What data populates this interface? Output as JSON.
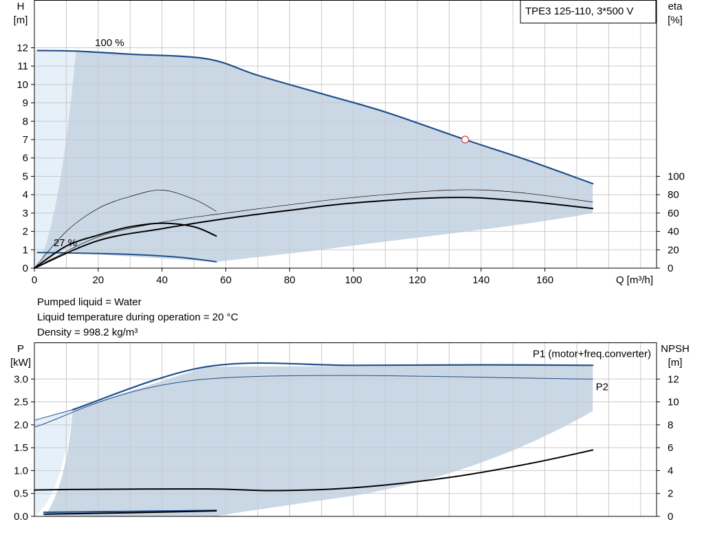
{
  "model_box": "TPE3 125-110, 3*500 V",
  "info": {
    "liquid": "Pumped liquid = Water",
    "temperature": "Liquid temperature during operation = 20 °C",
    "density": "Density = 998.2 kg/m³"
  },
  "colors": {
    "blue": "#1f4e8c",
    "band": "#cad8e6",
    "band_light": "#e6f0f8",
    "grid": "#c9c9c9",
    "black": "#000000"
  },
  "chart_data": [
    {
      "type": "line",
      "ylabel_unit": "H\n[m]",
      "y2label_unit": "eta\n[%]",
      "xlabel": "Q [m³/h]",
      "xlim": [
        0,
        195
      ],
      "ylim": [
        0,
        14.6
      ],
      "y2lim": [
        0,
        292
      ],
      "xticks": [
        0,
        20,
        40,
        60,
        80,
        100,
        120,
        140,
        160
      ],
      "yticks": [
        0,
        1,
        2,
        3,
        4,
        5,
        6,
        7,
        8,
        9,
        10,
        11,
        12
      ],
      "y2ticks": [
        0,
        20,
        40,
        60,
        80,
        100
      ],
      "grid": true,
      "annotations": [
        {
          "text": "100 %",
          "x": 19,
          "y": 12.1
        },
        {
          "text": "27 %",
          "x": 6,
          "y": 1.2
        }
      ],
      "series": [
        {
          "id": "H100",
          "axis": "y",
          "color": "#1f4e8c",
          "width": 2.2,
          "x": [
            1,
            13,
            30,
            54,
            70,
            90,
            110,
            135,
            155,
            175
          ],
          "y": [
            11.85,
            11.82,
            11.65,
            11.4,
            10.5,
            9.5,
            8.5,
            7.0,
            5.85,
            4.6
          ]
        },
        {
          "id": "H27",
          "axis": "y",
          "color": "#1f4e8c",
          "width": 2.0,
          "x": [
            1,
            10,
            30,
            45,
            57
          ],
          "y": [
            0.85,
            0.83,
            0.75,
            0.6,
            0.35
          ]
        },
        {
          "id": "eta_min_thin",
          "axis": "y2",
          "color": "#000000",
          "width": 0.7,
          "x": [
            0,
            10,
            20,
            30,
            40,
            50,
            57
          ],
          "y": [
            0,
            40,
            65,
            78,
            85,
            75,
            62
          ]
        },
        {
          "id": "eta_min",
          "axis": "y2",
          "color": "#000000",
          "width": 2.0,
          "x": [
            0,
            10,
            20,
            30,
            40,
            50,
            57
          ],
          "y": [
            0,
            24,
            36,
            45,
            49,
            45,
            35
          ]
        },
        {
          "id": "eta_max_thin",
          "axis": "y2",
          "color": "#000000",
          "width": 0.7,
          "x": [
            0,
            20,
            40,
            60,
            80,
            100,
            130,
            150,
            175
          ],
          "y": [
            0,
            34,
            50,
            60,
            69,
            77,
            85,
            83,
            72
          ]
        },
        {
          "id": "eta_max",
          "axis": "y2",
          "color": "#000000",
          "width": 2.0,
          "x": [
            0,
            20,
            40,
            60,
            80,
            100,
            130,
            150,
            175
          ],
          "y": [
            0,
            30,
            43,
            54,
            63,
            71,
            77,
            74,
            65
          ]
        }
      ],
      "duty_point": {
        "x": 135,
        "y": 7.0
      }
    },
    {
      "type": "line",
      "ylabel_unit": "P\n[kW]",
      "y2label_unit": "NPSH\n[m]",
      "xlim": [
        0,
        195
      ],
      "ylim": [
        0,
        3.8
      ],
      "y2lim": [
        0,
        15.2
      ],
      "yticks": [
        0.0,
        0.5,
        1.0,
        1.5,
        2.0,
        2.5,
        3.0
      ],
      "ytick_labels": [
        "0.0",
        "0.5",
        "1.0",
        "1.5",
        "2.0",
        "2.5",
        "3.0"
      ],
      "y2ticks": [
        0,
        2,
        4,
        6,
        8,
        10,
        12
      ],
      "grid": true,
      "legend": [
        {
          "text": "P1 (motor+freq.converter)",
          "color": "#1f4e8c"
        },
        {
          "text": "P2",
          "color": "#1f4e8c"
        }
      ],
      "series": [
        {
          "id": "P1",
          "axis": "y",
          "color": "#1f4e8c",
          "width": 2.2,
          "x": [
            12,
            54,
            100,
            140,
            175
          ],
          "y": [
            2.33,
            3.27,
            3.3,
            3.31,
            3.3
          ]
        },
        {
          "id": "P1_ext",
          "axis": "y",
          "color": "#1f4e8c",
          "width": 1.0,
          "x": [
            0,
            12
          ],
          "y": [
            2.1,
            2.33
          ]
        },
        {
          "id": "P2",
          "axis": "y",
          "color": "#1f4e8c",
          "width": 1.0,
          "x": [
            0,
            54,
            175
          ],
          "y": [
            1.95,
            3.0,
            3.0
          ]
        },
        {
          "id": "P_min1",
          "axis": "y",
          "color": "#1f4e8c",
          "width": 2.0,
          "x": [
            3,
            30,
            57
          ],
          "y": [
            0.09,
            0.11,
            0.13
          ]
        },
        {
          "id": "P_min2",
          "axis": "y",
          "color": "#000000",
          "width": 2.0,
          "x": [
            3,
            30,
            57
          ],
          "y": [
            0.05,
            0.08,
            0.12
          ]
        },
        {
          "id": "NPSH",
          "axis": "y2",
          "color": "#000000",
          "width": 2.0,
          "x": [
            0,
            12,
            54,
            75,
            100,
            130,
            155,
            175
          ],
          "y": [
            2.3,
            2.35,
            2.4,
            2.25,
            2.5,
            3.4,
            4.6,
            5.8
          ]
        }
      ]
    }
  ]
}
